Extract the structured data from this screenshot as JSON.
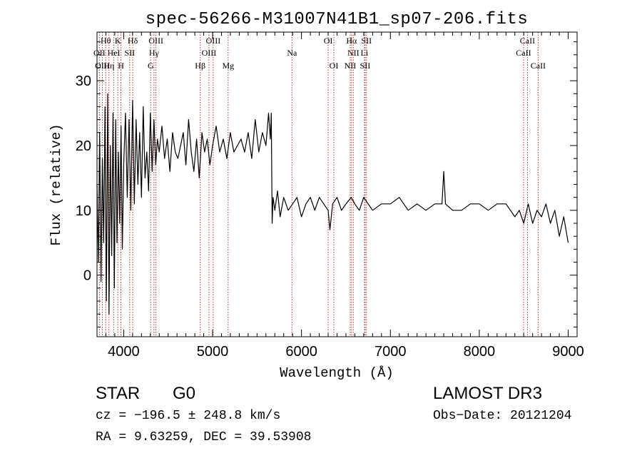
{
  "chart_data": {
    "type": "line",
    "title": "spec-56266-M31007N41B1_sp07-206.fits",
    "xlabel": "Wavelength (Å)",
    "ylabel": "Flux (relative)",
    "xlim": [
      3700,
      9100
    ],
    "ylim": [
      -9.5,
      37.5
    ],
    "xticks": [
      4000,
      5000,
      6000,
      7000,
      8000,
      9000
    ],
    "xtick_labels": [
      "4000",
      "5000",
      "6000",
      "7000",
      "8000",
      "9000"
    ],
    "yticks": [
      0,
      10,
      20,
      30
    ],
    "ytick_labels": [
      "0",
      "10",
      "20",
      "30"
    ],
    "series": [
      {
        "name": "flux",
        "x": [
          3700,
          3715,
          3730,
          3745,
          3760,
          3775,
          3790,
          3805,
          3820,
          3835,
          3850,
          3865,
          3880,
          3895,
          3910,
          3925,
          3940,
          3955,
          3970,
          3985,
          4000,
          4020,
          4040,
          4060,
          4080,
          4100,
          4120,
          4140,
          4160,
          4180,
          4200,
          4220,
          4240,
          4260,
          4280,
          4300,
          4320,
          4340,
          4360,
          4380,
          4400,
          4430,
          4460,
          4490,
          4520,
          4550,
          4580,
          4610,
          4640,
          4670,
          4700,
          4730,
          4760,
          4790,
          4820,
          4850,
          4880,
          4910,
          4940,
          4970,
          5000,
          5040,
          5080,
          5120,
          5160,
          5200,
          5240,
          5280,
          5320,
          5360,
          5400,
          5440,
          5480,
          5520,
          5560,
          5600,
          5630,
          5650,
          5660,
          5670,
          5680,
          5700,
          5730,
          5760,
          5800,
          5850,
          5900,
          5950,
          6000,
          6050,
          6100,
          6150,
          6200,
          6250,
          6300,
          6320,
          6350,
          6400,
          6450,
          6500,
          6560,
          6600,
          6650,
          6700,
          6750,
          6800,
          6900,
          7000,
          7100,
          7200,
          7300,
          7400,
          7500,
          7580,
          7600,
          7620,
          7700,
          7800,
          7900,
          8000,
          8100,
          8200,
          8300,
          8400,
          8450,
          8500,
          8550,
          8600,
          8650,
          8700,
          8750,
          8800,
          8850,
          8900,
          8950,
          9000
        ],
        "y": [
          14,
          2,
          22,
          -1,
          18,
          5,
          26,
          -4,
          28,
          -6,
          20,
          3,
          25,
          -2,
          24,
          5,
          19,
          8,
          23,
          4,
          17,
          25,
          12,
          24,
          10,
          27,
          11,
          24,
          14,
          22,
          12,
          26,
          15,
          19,
          13,
          25,
          16,
          24,
          17,
          21,
          19,
          23,
          18,
          21,
          16,
          22,
          19,
          18,
          20,
          22,
          17,
          24,
          19,
          16,
          21,
          15,
          22,
          19,
          21,
          17,
          20,
          23,
          19,
          21,
          18,
          22,
          19,
          20,
          21,
          19,
          22,
          18,
          24,
          19,
          22,
          20,
          25,
          21,
          25,
          8,
          12,
          10,
          13,
          9,
          12,
          10,
          11,
          12,
          9,
          11,
          12,
          10,
          12,
          11,
          10,
          7,
          11,
          12,
          10,
          11,
          12,
          11,
          10,
          12,
          11,
          10,
          11,
          11,
          12,
          10,
          11,
          10,
          11,
          11,
          16,
          11,
          10,
          10,
          11,
          11,
          10,
          11,
          11,
          9,
          10,
          8,
          11,
          8,
          10,
          9,
          11,
          8,
          10,
          6,
          9,
          5
        ]
      }
    ],
    "line_markers": [
      {
        "label": "Hθ",
        "x": 3798,
        "row": 1
      },
      {
        "label": "K",
        "x": 3934,
        "row": 1
      },
      {
        "label": "Hδ",
        "x": 4102,
        "row": 1
      },
      {
        "label": "OIII",
        "x": 4363,
        "row": 1
      },
      {
        "label": "OIII",
        "x": 5007,
        "row": 1
      },
      {
        "label": "OI",
        "x": 6300,
        "row": 1
      },
      {
        "label": "Hα",
        "x": 6563,
        "row": 1
      },
      {
        "label": "SII",
        "x": 6731,
        "row": 1
      },
      {
        "label": "CaII",
        "x": 8542,
        "row": 1
      },
      {
        "label": "OII",
        "x": 3727,
        "row": 2
      },
      {
        "label": "HeI",
        "x": 3889,
        "row": 2
      },
      {
        "label": "SII",
        "x": 4068,
        "row": 2
      },
      {
        "label": "Hγ",
        "x": 4341,
        "row": 2
      },
      {
        "label": "OIII",
        "x": 4959,
        "row": 2
      },
      {
        "label": "Na",
        "x": 5893,
        "row": 2
      },
      {
        "label": "NII",
        "x": 6583,
        "row": 2
      },
      {
        "label": "Li",
        "x": 6708,
        "row": 2
      },
      {
        "label": "CaII",
        "x": 8498,
        "row": 2
      },
      {
        "label": "OIII",
        "x": 3760,
        "row": 3
      },
      {
        "label": "Hη",
        "x": 3835,
        "row": 3
      },
      {
        "label": "H",
        "x": 3969,
        "row": 3
      },
      {
        "label": "G",
        "x": 4304,
        "row": 3
      },
      {
        "label": "Hβ",
        "x": 4861,
        "row": 3
      },
      {
        "label": "Mg",
        "x": 5175,
        "row": 3
      },
      {
        "label": "OI",
        "x": 6364,
        "row": 3
      },
      {
        "label": "NII",
        "x": 6548,
        "row": 3
      },
      {
        "label": "SII",
        "x": 6716,
        "row": 3
      },
      {
        "label": "CaII",
        "x": 8662,
        "row": 3
      }
    ]
  },
  "info": {
    "object_type": "STAR",
    "subclass": "G0",
    "survey": "LAMOST DR3",
    "cz": "cz = −196.5 ± 248.8 km/s",
    "obs_date": "Obs−Date: 20121204",
    "radec": "RA =    9.63259, DEC =   39.53908"
  }
}
